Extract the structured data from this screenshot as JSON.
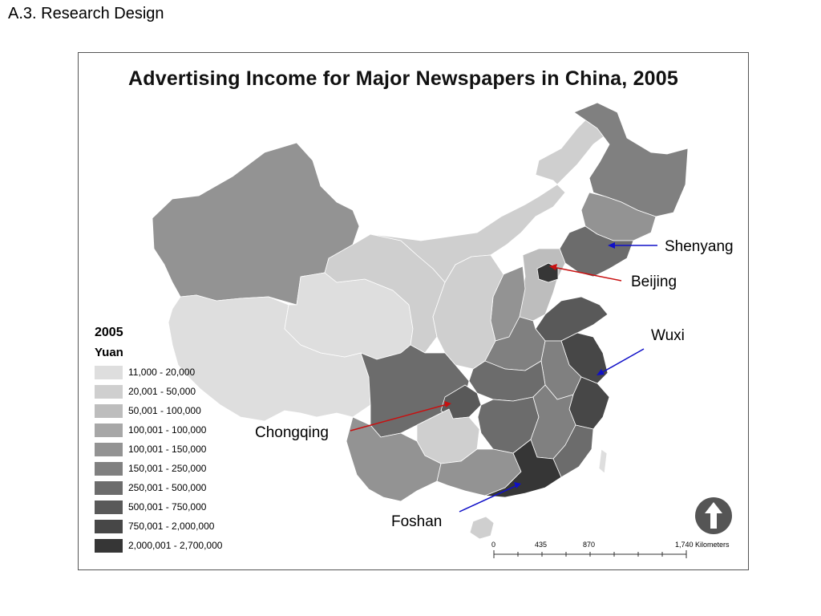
{
  "slide": {
    "title": "A.3. Research Design"
  },
  "map": {
    "title": "Advertising Income for Major Newspapers in China, 2005",
    "legend": {
      "year": "2005",
      "unit": "Yuan",
      "classes": [
        {
          "label": "11,000 - 20,000",
          "color": "#dedede"
        },
        {
          "label": "20,001 - 50,000",
          "color": "#cfcfcf"
        },
        {
          "label": "50,001 - 100,000",
          "color": "#bdbdbd"
        },
        {
          "label": "100,001 - 100,000",
          "color": "#a7a7a7"
        },
        {
          "label": "100,001 - 150,000",
          "color": "#939393"
        },
        {
          "label": "150,001 - 250,000",
          "color": "#808080"
        },
        {
          "label": "250,001 - 500,000",
          "color": "#6c6c6c"
        },
        {
          "label": "500,001 - 750,000",
          "color": "#595959"
        },
        {
          "label": "750,001 - 2,000,000",
          "color": "#474747"
        },
        {
          "label": "2,000,001 - 2,700,000",
          "color": "#363636"
        }
      ]
    },
    "callouts": [
      {
        "label": "Shenyang",
        "arrow_color": "#1010c8"
      },
      {
        "label": "Beijing",
        "arrow_color": "#c81010"
      },
      {
        "label": "Wuxi",
        "arrow_color": "#1010c8"
      },
      {
        "label": "Chongqing",
        "arrow_color": "#c81010"
      },
      {
        "label": "Foshan",
        "arrow_color": "#1010c8"
      }
    ],
    "scale_bar": {
      "ticks": [
        "0",
        "435",
        "870",
        "1,740 Kilometers"
      ]
    },
    "north_arrow_icon": "north-arrow-icon"
  }
}
